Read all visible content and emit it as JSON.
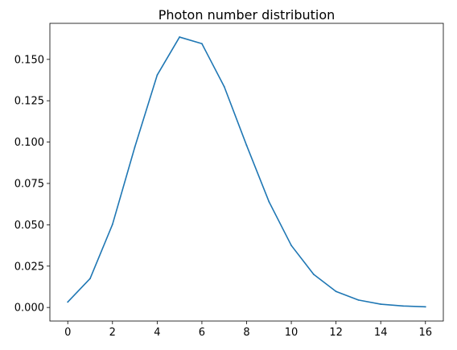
{
  "chart_data": {
    "type": "line",
    "title": "Photon number distribution",
    "xlabel": "",
    "ylabel": "",
    "xlim": [
      -0.8,
      16.8
    ],
    "ylim": [
      -0.0082,
      0.1718
    ],
    "grid": false,
    "x_ticks": [
      0,
      2,
      4,
      6,
      8,
      10,
      12,
      14,
      16
    ],
    "x_tick_labels": [
      "0",
      "2",
      "4",
      "6",
      "8",
      "10",
      "12",
      "14",
      "16"
    ],
    "y_ticks": [
      0.0,
      0.025,
      0.05,
      0.075,
      0.1,
      0.125,
      0.15
    ],
    "y_tick_labels": [
      "0.000",
      "0.025",
      "0.050",
      "0.075",
      "0.100",
      "0.125",
      "0.150"
    ],
    "series": [
      {
        "color": "#1f77b4",
        "x": [
          0,
          1,
          2,
          3,
          4,
          5,
          6,
          7,
          8,
          9,
          10,
          11,
          12,
          13,
          14,
          15,
          16
        ],
        "values": [
          0.0033,
          0.0175,
          0.0502,
          0.097,
          0.1405,
          0.1635,
          0.1595,
          0.1335,
          0.098,
          0.064,
          0.0375,
          0.02,
          0.0097,
          0.0045,
          0.002,
          0.0009,
          0.0004
        ]
      }
    ]
  }
}
